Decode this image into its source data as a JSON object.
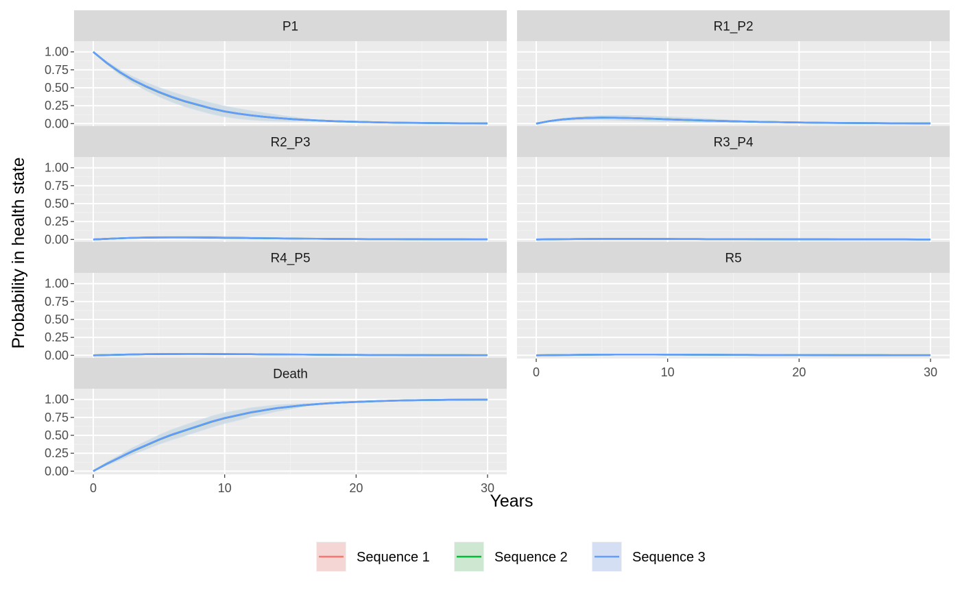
{
  "colors": {
    "panel_bg": "#EBEBEB",
    "strip_bg": "#D9D9D9",
    "grid_major": "#FFFFFF",
    "grid_minor": "#F2F2F2",
    "tick": "#333333"
  },
  "chart_data": {
    "type": "line",
    "xlabel": "Years",
    "ylabel": "Probability in health state",
    "xlim": [
      0,
      30
    ],
    "ylim": [
      0,
      1
    ],
    "x_ticks": [
      "0",
      "10",
      "20",
      "30"
    ],
    "y_ticks": [
      "0.00",
      "0.25",
      "0.50",
      "0.75",
      "1.00"
    ],
    "grid": true,
    "legend_position": "bottom",
    "x": [
      0,
      1,
      2,
      3,
      4,
      5,
      6,
      7,
      8,
      9,
      10,
      11,
      12,
      13,
      14,
      15,
      16,
      17,
      18,
      19,
      20,
      21,
      22,
      23,
      24,
      25,
      26,
      27,
      28,
      29,
      30
    ],
    "series": [
      {
        "name": "Sequence 1",
        "color": "#F8766D",
        "fill": "#F4CCCA"
      },
      {
        "name": "Sequence 2",
        "color": "#00BA38",
        "fill": "#C2E3C5"
      },
      {
        "name": "Sequence 3",
        "color": "#619CFF",
        "fill": "#CBD8F4"
      }
    ],
    "facets": [
      {
        "title": "P1",
        "mean": [
          1.0,
          0.85,
          0.72,
          0.61,
          0.52,
          0.44,
          0.37,
          0.31,
          0.26,
          0.21,
          0.17,
          0.14,
          0.115,
          0.095,
          0.078,
          0.064,
          0.053,
          0.044,
          0.036,
          0.03,
          0.025,
          0.02,
          0.016,
          0.013,
          0.011,
          0.009,
          0.007,
          0.006,
          0.005,
          0.004,
          0.003
        ],
        "band": 0.07
      },
      {
        "title": "R1_P2",
        "mean": [
          0.0,
          0.035,
          0.058,
          0.072,
          0.08,
          0.083,
          0.082,
          0.078,
          0.073,
          0.067,
          0.06,
          0.054,
          0.048,
          0.042,
          0.037,
          0.032,
          0.028,
          0.024,
          0.021,
          0.018,
          0.015,
          0.013,
          0.011,
          0.009,
          0.008,
          0.007,
          0.006,
          0.005,
          0.004,
          0.003,
          0.003
        ],
        "band": 0.035
      },
      {
        "title": "R2_P3",
        "mean": [
          0.0,
          0.008,
          0.016,
          0.022,
          0.026,
          0.028,
          0.029,
          0.029,
          0.028,
          0.026,
          0.024,
          0.022,
          0.019,
          0.017,
          0.015,
          0.013,
          0.011,
          0.01,
          0.008,
          0.007,
          0.006,
          0.005,
          0.004,
          0.004,
          0.003,
          0.003,
          0.002,
          0.002,
          0.002,
          0.001,
          0.001
        ],
        "band": 0.02
      },
      {
        "title": "R3_P4",
        "mean": [
          0.0,
          0.002,
          0.004,
          0.006,
          0.007,
          0.008,
          0.008,
          0.008,
          0.008,
          0.007,
          0.007,
          0.006,
          0.006,
          0.005,
          0.005,
          0.004,
          0.004,
          0.003,
          0.003,
          0.002,
          0.002,
          0.002,
          0.002,
          0.001,
          0.001,
          0.001,
          0.001,
          0.001,
          0.001,
          0.0,
          0.0
        ],
        "band": 0.008
      },
      {
        "title": "R4_P5",
        "mean": [
          0.0,
          0.004,
          0.008,
          0.012,
          0.015,
          0.017,
          0.018,
          0.019,
          0.019,
          0.018,
          0.017,
          0.016,
          0.015,
          0.013,
          0.012,
          0.011,
          0.01,
          0.008,
          0.007,
          0.006,
          0.006,
          0.005,
          0.004,
          0.004,
          0.003,
          0.003,
          0.002,
          0.002,
          0.002,
          0.001,
          0.001
        ],
        "band": 0.012
      },
      {
        "title": "R5",
        "mean": [
          0.0,
          0.002,
          0.004,
          0.006,
          0.008,
          0.009,
          0.01,
          0.01,
          0.01,
          0.01,
          0.009,
          0.009,
          0.008,
          0.008,
          0.007,
          0.006,
          0.006,
          0.005,
          0.005,
          0.004,
          0.004,
          0.003,
          0.003,
          0.002,
          0.002,
          0.002,
          0.002,
          0.001,
          0.001,
          0.001,
          0.001
        ],
        "band": 0.008
      },
      {
        "title": "Death",
        "mean": [
          0.0,
          0.1,
          0.19,
          0.28,
          0.36,
          0.44,
          0.51,
          0.57,
          0.63,
          0.69,
          0.74,
          0.78,
          0.82,
          0.85,
          0.88,
          0.9,
          0.92,
          0.935,
          0.948,
          0.958,
          0.966,
          0.973,
          0.979,
          0.984,
          0.988,
          0.991,
          0.993,
          0.995,
          0.996,
          0.997,
          0.998
        ],
        "band": 0.07
      }
    ]
  }
}
